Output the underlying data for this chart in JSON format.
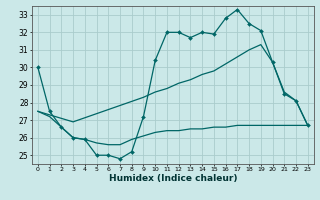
{
  "background_color": "#cbe8e8",
  "grid_color": "#aacccc",
  "line_color": "#006666",
  "x_label": "Humidex (Indice chaleur)",
  "ylim": [
    24.5,
    33.5
  ],
  "xlim": [
    -0.5,
    23.5
  ],
  "yticks": [
    25,
    26,
    27,
    28,
    29,
    30,
    31,
    32,
    33
  ],
  "xticks": [
    0,
    1,
    2,
    3,
    4,
    5,
    6,
    7,
    8,
    9,
    10,
    11,
    12,
    13,
    14,
    15,
    16,
    17,
    18,
    19,
    20,
    21,
    22,
    23
  ],
  "line1_x": [
    0,
    1,
    2,
    3,
    4,
    5,
    6,
    7,
    8,
    9,
    10,
    11,
    12,
    13,
    14,
    15,
    16,
    17,
    18,
    19,
    20,
    21,
    22,
    23
  ],
  "line1_y": [
    30.0,
    27.5,
    26.6,
    26.0,
    25.9,
    25.0,
    25.0,
    24.8,
    25.2,
    27.2,
    30.4,
    32.0,
    32.0,
    31.7,
    32.0,
    31.9,
    32.8,
    33.3,
    32.5,
    32.1,
    30.3,
    28.5,
    28.1,
    26.7
  ],
  "line2_x": [
    0,
    1,
    2,
    3,
    4,
    5,
    6,
    7,
    8,
    9,
    10,
    11,
    12,
    13,
    14,
    15,
    16,
    17,
    18,
    19,
    20,
    21,
    22,
    23
  ],
  "line2_y": [
    27.5,
    27.2,
    26.6,
    26.0,
    25.9,
    25.7,
    25.6,
    25.6,
    25.9,
    26.1,
    26.3,
    26.4,
    26.4,
    26.5,
    26.5,
    26.6,
    26.6,
    26.7,
    26.7,
    26.7,
    26.7,
    26.7,
    26.7,
    26.7
  ],
  "line3_x": [
    0,
    1,
    2,
    3,
    9,
    10,
    11,
    12,
    13,
    14,
    15,
    16,
    17,
    18,
    19,
    20,
    21,
    22,
    23
  ],
  "line3_y": [
    27.5,
    27.3,
    27.1,
    26.9,
    28.3,
    28.6,
    28.8,
    29.1,
    29.3,
    29.6,
    29.8,
    30.2,
    30.6,
    31.0,
    31.3,
    30.3,
    28.6,
    28.1,
    26.7
  ]
}
